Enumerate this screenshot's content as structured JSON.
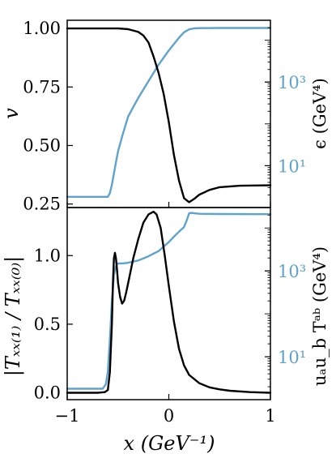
{
  "colors": {
    "left_series": "#000000",
    "right_series": "#5fa2cd",
    "axes": "#000000"
  },
  "x_axis": {
    "label": "x (GeV⁻¹)",
    "ticks": [
      -1,
      0,
      1
    ],
    "tick_labels": [
      "−1",
      "0",
      "1"
    ]
  },
  "chart_data": [
    {
      "type": "line",
      "panel": "top",
      "xlim": [
        -1,
        1
      ],
      "left_axis": {
        "label": "v",
        "scale": "linear",
        "ylim": [
          0.235,
          1.035
        ],
        "ticks": [
          1.0,
          0.75,
          0.5,
          0.25
        ],
        "tick_labels": [
          "1.00",
          "0.75",
          "0.50",
          "0.25"
        ]
      },
      "right_axis": {
        "label": "ϵ (GeV⁴)",
        "scale": "log",
        "ylim": [
          1,
          30000
        ],
        "ticks": [
          1000,
          10
        ],
        "tick_labels": [
          "10³",
          "10¹"
        ]
      },
      "series": [
        {
          "axis": "left",
          "color": "#000000",
          "x": [
            -1.0,
            -0.5,
            -0.4,
            -0.3,
            -0.25,
            -0.2,
            -0.15,
            -0.1,
            -0.05,
            0.0,
            0.05,
            0.1,
            0.15,
            0.2,
            0.25,
            0.3,
            0.4,
            0.5,
            0.7,
            1.0
          ],
          "y": [
            1.0,
            1.0,
            0.997,
            0.985,
            0.97,
            0.94,
            0.88,
            0.81,
            0.72,
            0.6,
            0.46,
            0.35,
            0.275,
            0.258,
            0.272,
            0.29,
            0.31,
            0.322,
            0.328,
            0.33
          ]
        },
        {
          "axis": "right",
          "color": "#5fa2cd",
          "x": [
            -1.0,
            -0.6,
            -0.58,
            -0.56,
            -0.54,
            -0.52,
            -0.5,
            -0.45,
            -0.4,
            -0.3,
            -0.2,
            -0.1,
            0.0,
            0.1,
            0.15,
            0.2,
            0.25,
            0.3,
            0.5,
            1.0
          ],
          "y": [
            1.8,
            1.8,
            2.2,
            3.5,
            6.5,
            12,
            22,
            60,
            150,
            420,
            1050,
            2600,
            5700,
            11500,
            15500,
            18200,
            19200,
            19500,
            19600,
            19600
          ]
        }
      ]
    },
    {
      "type": "line",
      "panel": "bottom",
      "xlim": [
        -1,
        1
      ],
      "left_axis": {
        "label": "|Tₓₓ₍₁₎ / Tₓₓ₍₀₎|",
        "scale": "linear",
        "ylim": [
          -0.05,
          1.35
        ],
        "ticks": [
          1.0,
          0.5,
          0.0
        ],
        "tick_labels": [
          "1.0",
          "0.5",
          "0.0"
        ]
      },
      "right_axis": {
        "label": "uₐu_b Tᵃᵇ (GeV⁴)",
        "scale": "log",
        "ylim": [
          1,
          30000
        ],
        "ticks": [
          1000,
          10
        ],
        "tick_labels": [
          "10³",
          "10¹"
        ]
      },
      "series": [
        {
          "axis": "left",
          "color": "#000000",
          "x": [
            -1.0,
            -0.7,
            -0.63,
            -0.6,
            -0.58,
            -0.56,
            -0.55,
            -0.54,
            -0.53,
            -0.52,
            -0.51,
            -0.5,
            -0.48,
            -0.46,
            -0.44,
            -0.42,
            -0.4,
            -0.35,
            -0.3,
            -0.25,
            -0.2,
            -0.15,
            -0.12,
            -0.08,
            -0.04,
            0.0,
            0.05,
            0.1,
            0.15,
            0.2,
            0.3,
            0.4,
            0.5,
            0.6,
            0.8,
            1.0
          ],
          "y": [
            0.0,
            0.0,
            0.005,
            0.02,
            0.15,
            0.5,
            0.8,
            0.98,
            1.02,
            0.98,
            0.9,
            0.8,
            0.7,
            0.65,
            0.67,
            0.73,
            0.8,
            0.98,
            1.12,
            1.24,
            1.3,
            1.32,
            1.3,
            1.2,
            1.0,
            0.78,
            0.52,
            0.32,
            0.2,
            0.13,
            0.07,
            0.04,
            0.025,
            0.015,
            0.005,
            0.0
          ]
        },
        {
          "axis": "right",
          "color": "#5fa2cd",
          "x": [
            -1.0,
            -0.65,
            -0.62,
            -0.6,
            -0.58,
            -0.56,
            -0.54,
            -0.52,
            -0.5,
            -0.45,
            -0.4,
            -0.3,
            -0.2,
            -0.1,
            -0.05,
            0.0,
            0.05,
            0.1,
            0.15,
            0.18,
            0.2,
            0.22,
            0.25,
            0.3,
            0.5,
            1.0
          ],
          "y": [
            1.8,
            1.8,
            2.3,
            4.5,
            25,
            200,
            800,
            1300,
            1500,
            1500,
            1550,
            1750,
            2200,
            2900,
            3700,
            4700,
            6300,
            8200,
            10500,
            16000,
            22000,
            22500,
            22000,
            21500,
            21200,
            21000
          ]
        }
      ]
    }
  ]
}
